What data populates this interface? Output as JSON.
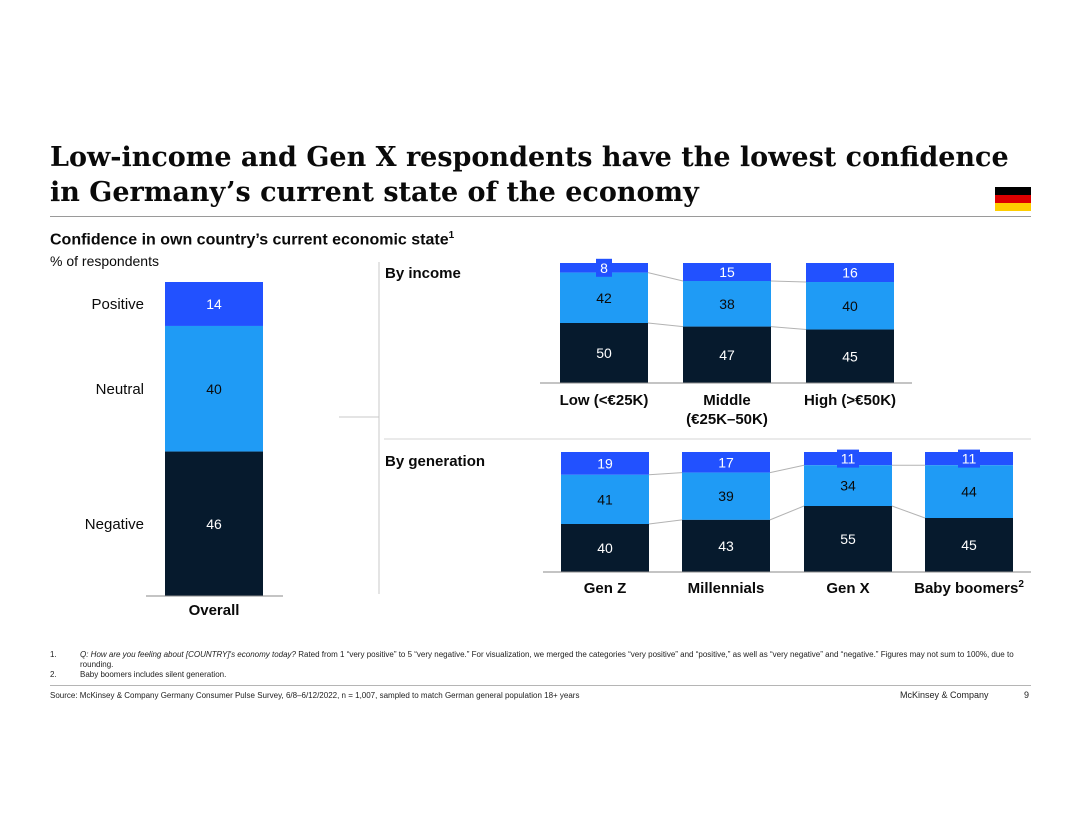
{
  "title": "Low-income and Gen X respondents have the lowest confidence in Germany’s current state of the economy",
  "subtitle": "Confidence in own country’s current economic state",
  "subtitle_note": "1",
  "unit_label": "% of respondents",
  "flag_colors": [
    "#000000",
    "#dd0000",
    "#ffce00"
  ],
  "colors": {
    "positive": "#2251ff",
    "neutral": "#1f9bf5",
    "negative": "#061a2d"
  },
  "chart_data": [
    {
      "type": "bar",
      "stacked": true,
      "categories": [
        "Overall"
      ],
      "segment_labels": [
        "Positive",
        "Neutral",
        "Negative"
      ],
      "series": [
        {
          "name": "Positive",
          "values": [
            14
          ]
        },
        {
          "name": "Neutral",
          "values": [
            40
          ]
        },
        {
          "name": "Negative",
          "values": [
            46
          ]
        }
      ]
    },
    {
      "type": "bar",
      "stacked": true,
      "group_title": "By income",
      "categories": [
        "Low (<€25K)",
        "Middle (€25K–50K)",
        "High (>€50K)"
      ],
      "series": [
        {
          "values": [
            8,
            15,
            16
          ]
        },
        {
          "values": [
            42,
            38,
            40
          ]
        },
        {
          "values": [
            50,
            47,
            45
          ]
        }
      ]
    },
    {
      "type": "bar",
      "stacked": true,
      "group_title": "By generation",
      "categories": [
        "Gen Z",
        "Millennials",
        "Gen X",
        "Baby boomers"
      ],
      "category_notes": [
        "",
        "",
        "",
        "2"
      ],
      "series": [
        {
          "values": [
            19,
            17,
            11,
            11
          ]
        },
        {
          "values": [
            41,
            39,
            34,
            44
          ]
        },
        {
          "values": [
            40,
            43,
            55,
            45
          ]
        }
      ]
    }
  ],
  "footnotes": [
    {
      "num": "1.",
      "question": "Q: How are you feeling about [COUNTRY]'s economy today?",
      "text": " Rated from 1 “very positive” to 5 “very negative.” For visualization, we merged the categories “very positive” and “positive,” as well as “very negative” and “negative.” Figures may not sum to 100%, due to rounding."
    },
    {
      "num": "2.",
      "question": "",
      "text": "Baby boomers includes silent generation."
    }
  ],
  "source": "Source: McKinsey & Company Germany Consumer Pulse Survey, 6/8–6/12/2022, n = 1,007, sampled to match German general population 18+ years",
  "brand": "McKinsey & Company",
  "page_number": "9"
}
